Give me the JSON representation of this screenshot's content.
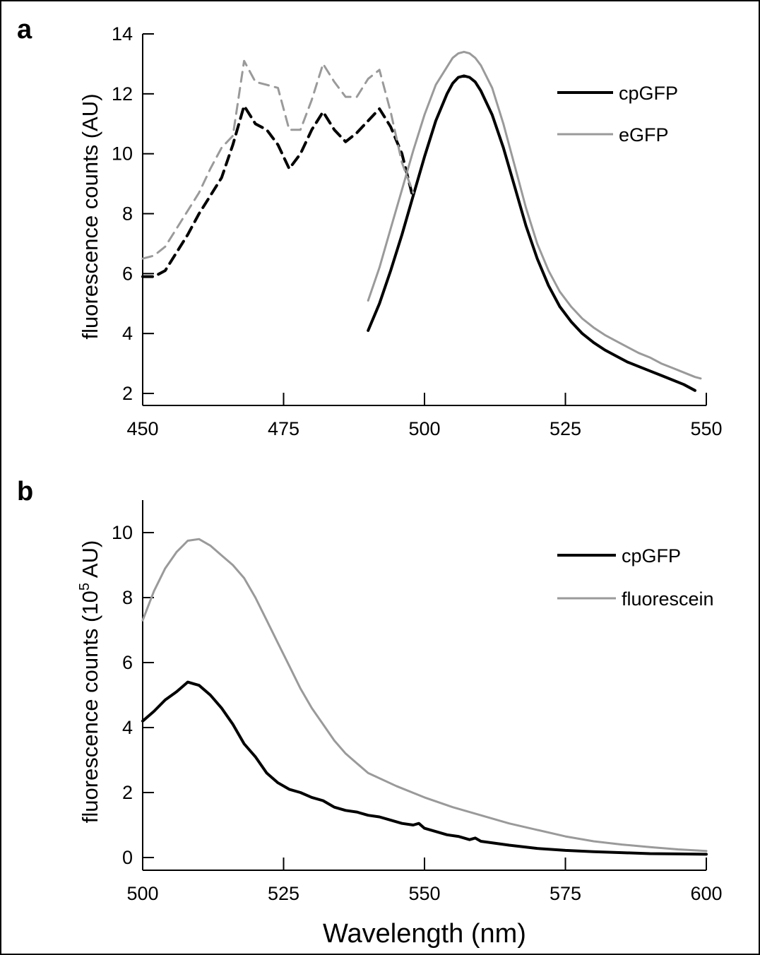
{
  "chart_data": [
    {
      "panel_label": "a",
      "type": "line",
      "xlabel": "",
      "ylabel": "fluorescence counts (AU)",
      "xlim": [
        450,
        550
      ],
      "ylim": [
        2,
        14
      ],
      "xticks": [
        450,
        475,
        500,
        525,
        550
      ],
      "yticks": [
        2,
        4,
        6,
        8,
        10,
        12,
        14
      ],
      "legend": {
        "placement": "top-right",
        "entries": [
          "cpGFP",
          "eGFP"
        ]
      },
      "grid": false,
      "colors": {
        "cpGFP": "#000000",
        "eGFP": "#9a9a9a"
      },
      "series": [
        {
          "name": "cpGFP",
          "kind": "emission",
          "style": "solid",
          "x": [
            490,
            492,
            494,
            496,
            498,
            500,
            502,
            504,
            505,
            506,
            507,
            508,
            509,
            510,
            512,
            514,
            516,
            518,
            520,
            522,
            524,
            526,
            528,
            530,
            532,
            534,
            536,
            538,
            540,
            542,
            544,
            546,
            548
          ],
          "y": [
            4.1,
            5.0,
            6.1,
            7.3,
            8.6,
            9.9,
            11.1,
            12.0,
            12.35,
            12.55,
            12.6,
            12.55,
            12.4,
            12.1,
            11.3,
            10.2,
            8.9,
            7.6,
            6.5,
            5.6,
            4.9,
            4.4,
            4.0,
            3.7,
            3.45,
            3.25,
            3.05,
            2.9,
            2.75,
            2.6,
            2.45,
            2.3,
            2.1
          ]
        },
        {
          "name": "cpGFP",
          "kind": "excitation",
          "style": "dashed",
          "x": [
            450,
            452,
            454,
            456,
            458,
            460,
            462,
            464,
            466,
            468,
            470,
            472,
            474,
            476,
            478,
            480,
            482,
            484,
            486,
            488,
            490,
            492,
            494,
            496,
            498
          ],
          "y": [
            5.9,
            5.9,
            6.1,
            6.7,
            7.3,
            8.0,
            8.6,
            9.2,
            10.3,
            11.6,
            11.0,
            10.8,
            10.3,
            9.5,
            10.0,
            10.8,
            11.4,
            10.8,
            10.4,
            10.7,
            11.1,
            11.5,
            10.9,
            10.0,
            8.5
          ]
        },
        {
          "name": "eGFP",
          "kind": "emission",
          "style": "solid",
          "x": [
            490,
            492,
            494,
            496,
            498,
            500,
            502,
            504,
            505,
            506,
            507,
            508,
            509,
            510,
            512,
            514,
            516,
            518,
            520,
            522,
            524,
            526,
            528,
            530,
            532,
            534,
            536,
            538,
            540,
            542,
            544,
            546,
            548,
            549
          ],
          "y": [
            5.1,
            6.2,
            7.5,
            8.8,
            10.1,
            11.3,
            12.3,
            12.9,
            13.2,
            13.35,
            13.4,
            13.35,
            13.2,
            12.95,
            12.2,
            11.0,
            9.6,
            8.2,
            7.0,
            6.1,
            5.4,
            4.9,
            4.5,
            4.2,
            3.95,
            3.75,
            3.55,
            3.35,
            3.2,
            3.0,
            2.85,
            2.7,
            2.55,
            2.5
          ]
        },
        {
          "name": "eGFP",
          "kind": "excitation",
          "style": "dashed",
          "x": [
            450,
            452,
            454,
            456,
            458,
            460,
            462,
            464,
            466,
            468,
            470,
            472,
            474,
            476,
            478,
            480,
            482,
            484,
            486,
            488,
            490,
            492,
            494,
            496,
            498
          ],
          "y": [
            6.5,
            6.6,
            6.9,
            7.5,
            8.1,
            8.7,
            9.5,
            10.2,
            10.6,
            13.1,
            12.4,
            12.3,
            12.2,
            10.8,
            10.8,
            11.8,
            13.0,
            12.4,
            11.9,
            11.9,
            12.5,
            12.8,
            11.4,
            9.7,
            8.7
          ]
        }
      ]
    },
    {
      "panel_label": "b",
      "type": "line",
      "xlabel": "Wavelength (nm)",
      "ylabel_parts": [
        "fluorescence counts (10",
        "5",
        " AU)"
      ],
      "xlim": [
        500,
        600
      ],
      "ylim": [
        0,
        11
      ],
      "xticks": [
        500,
        525,
        550,
        575,
        600
      ],
      "yticks": [
        0,
        2,
        4,
        6,
        8,
        10
      ],
      "legend": {
        "placement": "top-right",
        "entries": [
          "cpGFP",
          "fluorescein"
        ]
      },
      "grid": false,
      "colors": {
        "cpGFP": "#000000",
        "fluorescein": "#9a9a9a"
      },
      "series": [
        {
          "name": "cpGFP",
          "style": "solid",
          "x": [
            500,
            502,
            504,
            506,
            508,
            509,
            510,
            512,
            514,
            516,
            518,
            520,
            522,
            524,
            526,
            528,
            530,
            532,
            534,
            536,
            538,
            540,
            542,
            544,
            546,
            548,
            549,
            550,
            552,
            554,
            556,
            558,
            559,
            560,
            565,
            570,
            575,
            580,
            585,
            590,
            595,
            600
          ],
          "y": [
            4.2,
            4.5,
            4.85,
            5.1,
            5.4,
            5.35,
            5.3,
            5.0,
            4.6,
            4.1,
            3.5,
            3.1,
            2.6,
            2.3,
            2.1,
            2.0,
            1.85,
            1.75,
            1.55,
            1.45,
            1.4,
            1.3,
            1.25,
            1.15,
            1.05,
            1.0,
            1.05,
            0.9,
            0.8,
            0.7,
            0.65,
            0.55,
            0.6,
            0.5,
            0.38,
            0.28,
            0.22,
            0.18,
            0.15,
            0.12,
            0.11,
            0.1
          ]
        },
        {
          "name": "fluorescein",
          "style": "solid",
          "x": [
            500,
            502,
            504,
            506,
            508,
            510,
            512,
            514,
            516,
            518,
            520,
            522,
            524,
            526,
            528,
            530,
            532,
            534,
            536,
            538,
            540,
            545,
            550,
            555,
            560,
            565,
            570,
            575,
            580,
            585,
            590,
            595,
            600
          ],
          "y": [
            7.3,
            8.2,
            8.9,
            9.4,
            9.75,
            9.8,
            9.6,
            9.3,
            9.0,
            8.6,
            8.0,
            7.3,
            6.6,
            5.9,
            5.2,
            4.6,
            4.1,
            3.6,
            3.2,
            2.9,
            2.6,
            2.2,
            1.85,
            1.55,
            1.3,
            1.05,
            0.85,
            0.65,
            0.5,
            0.4,
            0.32,
            0.25,
            0.2
          ]
        }
      ]
    }
  ]
}
